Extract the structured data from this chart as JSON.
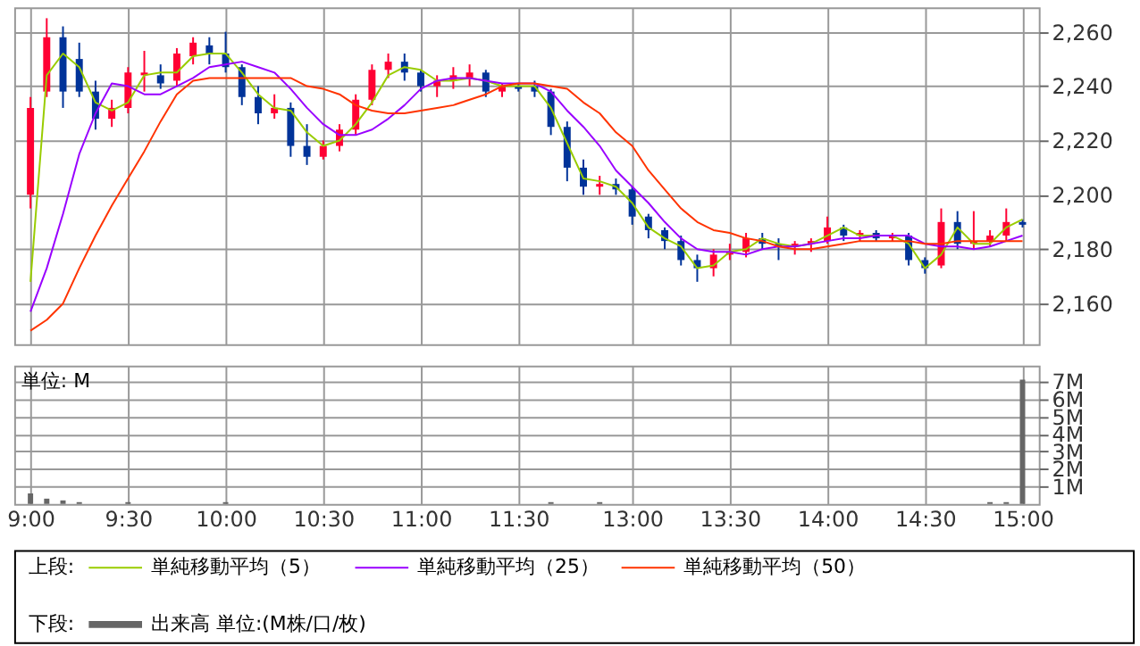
{
  "chart_data": [
    {
      "type": "candlestick",
      "legend": "bottom",
      "legend_title": "上段:",
      "grid": true,
      "tick_labels": "y",
      "marker": "none",
      "line_style": "solid",
      "categories": [
        null,
        null,
        null,
        null,
        null,
        null,
        null,
        null,
        null,
        null,
        null,
        null,
        null,
        null,
        null,
        null,
        null,
        null,
        null,
        null,
        null,
        null,
        null,
        null,
        null,
        null,
        null,
        null,
        null,
        null,
        null,
        null,
        null,
        null,
        null,
        null,
        null,
        null,
        null,
        null,
        null,
        null,
        null,
        null,
        null,
        null,
        null,
        null,
        null,
        null,
        null,
        null,
        null,
        null,
        null,
        null,
        null,
        null,
        null,
        null,
        null,
        null
      ],
      "ohlc": [
        [
          2200,
          2236,
          2195,
          2232
        ],
        [
          2238,
          2265,
          2236,
          2258
        ],
        [
          2258,
          2262,
          2232,
          2238
        ],
        [
          2250,
          2256,
          2236,
          2238
        ],
        [
          2238,
          2242,
          2224,
          2228
        ],
        [
          2228,
          2235,
          2225,
          2232
        ],
        [
          2232,
          2247,
          2230,
          2245
        ],
        [
          2244,
          2253,
          2238,
          2245
        ],
        [
          2244,
          2248,
          2239,
          2241
        ],
        [
          2242,
          2254,
          2240,
          2252
        ],
        [
          2251,
          2258,
          2248,
          2256
        ],
        [
          2255,
          2258,
          2248,
          2252
        ],
        [
          2252,
          2260,
          2245,
          2247
        ],
        [
          2247,
          2248,
          2233,
          2236
        ],
        [
          2236,
          2240,
          2226,
          2230
        ],
        [
          2230,
          2237,
          2228,
          2232
        ],
        [
          2232,
          2234,
          2214,
          2218
        ],
        [
          2218,
          2226,
          2211,
          2214
        ],
        [
          2214,
          2220,
          2213,
          2218
        ],
        [
          2218,
          2226,
          2216,
          2224
        ],
        [
          2224,
          2237,
          2222,
          2235
        ],
        [
          2235,
          2248,
          2233,
          2246
        ],
        [
          2246,
          2252,
          2243,
          2249
        ],
        [
          2249,
          2252,
          2242,
          2245
        ],
        [
          2245,
          2246,
          2238,
          2240
        ],
        [
          2240,
          2244,
          2236,
          2242
        ],
        [
          2242,
          2247,
          2239,
          2244
        ],
        [
          2243,
          2248,
          2240,
          2245
        ],
        [
          2245,
          2246,
          2236,
          2238
        ],
        [
          2238,
          2241,
          2236,
          2240
        ],
        [
          2240,
          2241,
          2238,
          2239
        ],
        [
          2240,
          2242,
          2236,
          2238
        ],
        [
          2238,
          2239,
          2222,
          2225
        ],
        [
          2225,
          2227,
          2205,
          2210
        ],
        [
          2210,
          2213,
          2200,
          2203
        ],
        [
          2203,
          2207,
          2200,
          2204
        ],
        [
          2204,
          2206,
          2200,
          2202
        ],
        [
          2202,
          2203,
          2189,
          2192
        ],
        [
          2192,
          2193,
          2184,
          2187
        ],
        [
          2187,
          2188,
          2180,
          2183
        ],
        [
          2183,
          2185,
          2174,
          2176
        ],
        [
          2176,
          2178,
          2168,
          2173
        ],
        [
          2173,
          2180,
          2170,
          2178
        ],
        [
          2178,
          2182,
          2176,
          2179
        ],
        [
          2179,
          2186,
          2177,
          2184
        ],
        [
          2184,
          2186,
          2180,
          2182
        ],
        [
          2182,
          2184,
          2176,
          2181
        ],
        [
          2181,
          2183,
          2178,
          2182
        ],
        [
          2182,
          2184,
          2179,
          2183
        ],
        [
          2183,
          2192,
          2182,
          2188
        ],
        [
          2188,
          2189,
          2183,
          2185
        ],
        [
          2185,
          2187,
          2183,
          2186
        ],
        [
          2186,
          2187,
          2183,
          2184
        ],
        [
          2184,
          2186,
          2183,
          2185
        ],
        [
          2185,
          2186,
          2174,
          2176
        ],
        [
          2176,
          2177,
          2171,
          2173
        ],
        [
          2174,
          2195,
          2173,
          2190
        ],
        [
          2190,
          2194,
          2180,
          2182
        ],
        [
          2182,
          2194,
          2180,
          2183
        ],
        [
          2183,
          2187,
          2181,
          2185
        ],
        [
          2185,
          2195,
          2183,
          2190
        ],
        [
          2190,
          2191,
          2188,
          2189
        ]
      ],
      "series": [
        {
          "name": "単純移動平均（5）",
          "type": "line",
          "color": "#99cc00",
          "values": [
            2168,
            2244,
            2252,
            2247,
            2234,
            2231,
            2234,
            2244,
            2245,
            2245,
            2251,
            2252,
            2252,
            2245,
            2237,
            2232,
            2231,
            2223,
            2218,
            2220,
            2226,
            2234,
            2244,
            2247,
            2246,
            2242,
            2242,
            2243,
            2242,
            2240,
            2240,
            2240,
            2232,
            2219,
            2206,
            2205,
            2203,
            2197,
            2188,
            2184,
            2181,
            2173,
            2174,
            2179,
            2180,
            2184,
            2182,
            2181,
            2182,
            2185,
            2188,
            2185,
            2185,
            2185,
            2182,
            2173,
            2178,
            2188,
            2182,
            2182,
            2188,
            2191
          ]
        },
        {
          "name": "単純移動平均（25）",
          "type": "line",
          "color": "#9900ff",
          "values": [
            2157,
            2173,
            2193,
            2215,
            2230,
            2241,
            2240,
            2237,
            2237,
            2240,
            2243,
            2247,
            2248,
            2249,
            2247,
            2245,
            2239,
            2232,
            2226,
            2222,
            2222,
            2224,
            2228,
            2233,
            2239,
            2242,
            2243,
            2243,
            2242,
            2241,
            2241,
            2241,
            2238,
            2231,
            2225,
            2218,
            2209,
            2203,
            2197,
            2190,
            2184,
            2180,
            2179,
            2179,
            2178,
            2180,
            2181,
            2181,
            2182,
            2183,
            2184,
            2184,
            2185,
            2185,
            2185,
            2182,
            2181,
            2181,
            2180,
            2181,
            2183,
            2185
          ]
        },
        {
          "name": "単純移動平均（50）",
          "type": "line",
          "color": "#ff3300",
          "values": [
            2150,
            2154,
            2160,
            2173,
            2185,
            2196,
            2206,
            2216,
            2227,
            2237,
            2242,
            2243,
            2243,
            2243,
            2243,
            2243,
            2243,
            2240,
            2239,
            2237,
            2233,
            2231,
            2230,
            2230,
            2231,
            2232,
            2233,
            2235,
            2237,
            2240,
            2241,
            2241,
            2240,
            2239,
            2234,
            2230,
            2223,
            2218,
            2209,
            2202,
            2195,
            2190,
            2187,
            2186,
            2184,
            2183,
            2181,
            2180,
            2180,
            2181,
            2182,
            2183,
            2183,
            2183,
            2183,
            2182,
            2182,
            2183,
            2183,
            2183,
            2183,
            2183
          ]
        }
      ],
      "ylim": [
        2145,
        2269
      ],
      "yticks": [
        {
          "value": 2160,
          "label": "2,160"
        },
        {
          "value": 2180,
          "label": "2,180"
        },
        {
          "value": 2200,
          "label": "2,200"
        },
        {
          "value": 2220,
          "label": "2,220"
        },
        {
          "value": 2240,
          "label": "2,240"
        },
        {
          "value": 2260,
          "label": "2,260"
        }
      ]
    },
    {
      "type": "bar",
      "legend": "bottom",
      "legend_title": "下段:",
      "grid": true,
      "annotations": [
        "単位: M"
      ],
      "categories": [
        "9:00",
        null,
        null,
        null,
        null,
        null,
        "9:30",
        null,
        null,
        null,
        null,
        null,
        "10:00",
        null,
        null,
        null,
        null,
        null,
        "10:30",
        null,
        null,
        null,
        null,
        null,
        "11:00",
        null,
        null,
        null,
        null,
        null,
        "11:30",
        null,
        null,
        null,
        null,
        null,
        null,
        "13:00",
        null,
        null,
        null,
        null,
        null,
        "13:30",
        null,
        null,
        null,
        null,
        null,
        "14:00",
        null,
        null,
        null,
        null,
        null,
        "14:30",
        null,
        null,
        null,
        null,
        null,
        "15:00"
      ],
      "series": [
        {
          "name": "出来高 単位:(M株/口/枚)",
          "color": "#666666",
          "values": [
            0.6,
            0.3,
            0.2,
            0.1,
            0,
            0,
            0.1,
            0,
            0,
            0,
            0,
            0,
            0.1,
            0,
            0,
            0,
            0,
            0,
            0,
            0,
            0,
            0,
            0,
            0,
            0,
            0,
            0,
            0,
            0,
            0,
            0,
            0,
            0.1,
            0,
            0,
            0.1,
            0,
            0,
            0,
            0,
            0,
            0,
            0,
            0,
            0,
            0,
            0,
            0,
            0,
            0,
            0,
            0,
            0,
            0,
            0,
            0,
            0,
            0,
            0,
            0.1,
            0.1,
            7.1
          ]
        }
      ],
      "ylim": [
        0,
        7.9
      ],
      "yticks": [
        {
          "value": 1,
          "label": "1M"
        },
        {
          "value": 2,
          "label": "2M"
        },
        {
          "value": 3,
          "label": "3M"
        },
        {
          "value": 4,
          "label": "4M"
        },
        {
          "value": 5,
          "label": "5M"
        },
        {
          "value": 6,
          "label": "6M"
        },
        {
          "value": 7,
          "label": "7M"
        }
      ]
    }
  ]
}
